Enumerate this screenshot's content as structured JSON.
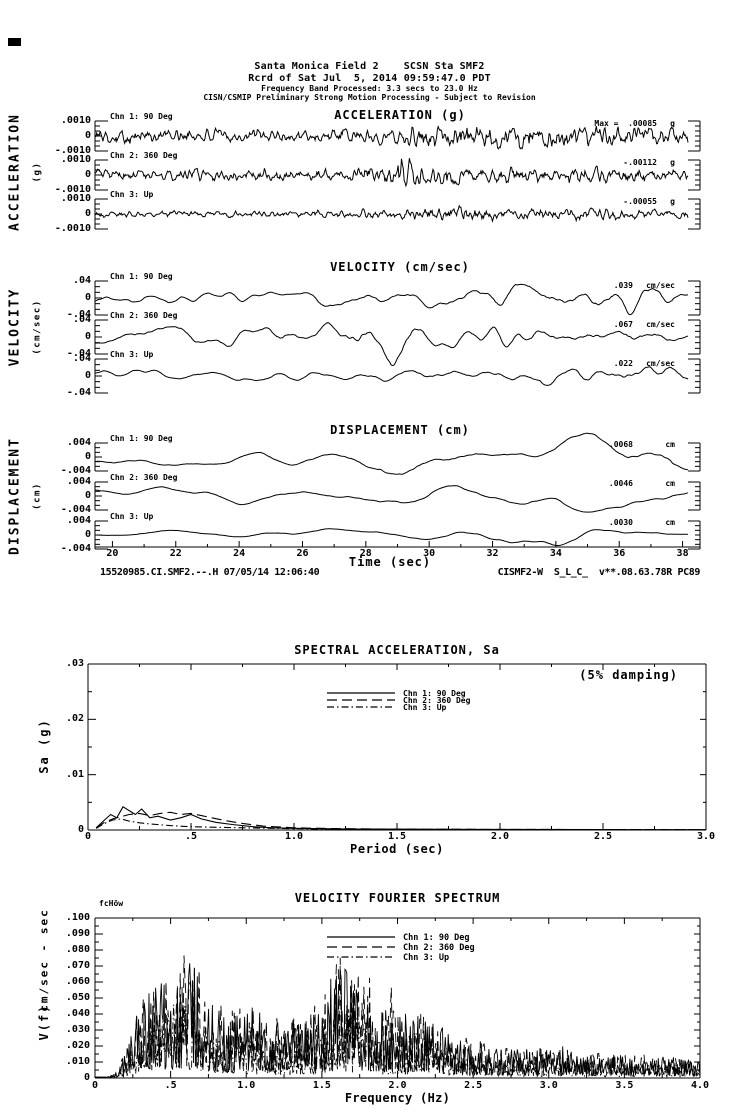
{
  "page": {
    "bg": "#ffffff",
    "fg": "#000000"
  },
  "header": {
    "line1": "Santa Monica Field 2    SCSN Sta SMF2",
    "line2": "Rcrd of Sat Jul  5, 2014 09:59:47.0 PDT",
    "line3": "Frequency Band Processed: 3.3 secs to 23.0 Hz",
    "line4": "CISN/CSMIP Preliminary Strong Motion Processing - Subject to Revision"
  },
  "legend": {
    "items": [
      {
        "label": "Chn 1: 90 Deg",
        "style": "solid"
      },
      {
        "label": "Chn 2: 360 Deg",
        "style": "long-dash"
      },
      {
        "label": "Chn 3: Up",
        "style": "dash-dot"
      }
    ]
  },
  "chart_data": [
    {
      "id": "waveform-time-series",
      "type": "line",
      "xlabel": "Time (sec)",
      "x_range": [
        19.45,
        38.55
      ],
      "x_ticks": [
        20,
        22,
        24,
        26,
        28,
        30,
        32,
        34,
        36,
        38
      ],
      "x_minor_step": 1,
      "footer_left": "15520985.CI.SMF2.--.H 07/05/14 12:06:40",
      "footer_right": "CISMF2-W  S_L_C_  v**.08.63.78R PC89",
      "groups": [
        {
          "title": "ACCELERATION (g)",
          "side_label": "ACCELERATION",
          "side_unit": "(g)",
          "scale": 0.001,
          "yticks": {
            "top": ".0010",
            "mid": "0",
            "bot": "-.0010"
          },
          "channels": [
            {
              "label": "Chn 1: 90 Deg",
              "max_label": "Max =  .00085",
              "max_value": 0.00085,
              "unit": "g",
              "gen": {
                "seed": 101,
                "env": [
                  [
                    0,
                    0.55
                  ],
                  [
                    0.3,
                    0.5
                  ],
                  [
                    0.45,
                    0.55
                  ],
                  [
                    0.55,
                    0.8
                  ],
                  [
                    0.68,
                    1
                  ],
                  [
                    0.85,
                    0.85
                  ],
                  [
                    1,
                    0.75
                  ]
                ]
              }
            },
            {
              "label": "Chn 2: 360 Deg",
              "max_label": "-.00112",
              "max_value": -0.00112,
              "unit": "g",
              "gen": {
                "seed": 102,
                "env": [
                  [
                    0,
                    0.35
                  ],
                  [
                    0.4,
                    0.4
                  ],
                  [
                    0.49,
                    0.55
                  ],
                  [
                    0.52,
                    1
                  ],
                  [
                    0.56,
                    0.7
                  ],
                  [
                    0.65,
                    0.45
                  ],
                  [
                    0.8,
                    0.5
                  ],
                  [
                    1,
                    0.4
                  ]
                ]
              }
            },
            {
              "label": "Chn 3: Up",
              "max_label": "-.00055",
              "max_value": -0.00055,
              "unit": "g",
              "gen": {
                "seed": 103,
                "env": [
                  [
                    0,
                    0.45
                  ],
                  [
                    0.4,
                    0.5
                  ],
                  [
                    0.5,
                    0.75
                  ],
                  [
                    0.6,
                    1
                  ],
                  [
                    0.75,
                    0.85
                  ],
                  [
                    1,
                    0.65
                  ]
                ]
              }
            }
          ]
        },
        {
          "title": "VELOCITY (cm/sec)",
          "side_label": "VELOCITY",
          "side_unit": "(cm/sec)",
          "scale": 0.04,
          "yticks": {
            "top": ".04",
            "mid": "0",
            "bot": "-.04"
          },
          "channels": [
            {
              "label": "Chn 1: 90 Deg",
              "max_label": ".039",
              "max_value": 0.039,
              "unit": "cm/sec",
              "gen": {
                "seed": 201,
                "env": [
                  [
                    0,
                    0.4
                  ],
                  [
                    0.35,
                    0.45
                  ],
                  [
                    0.5,
                    0.6
                  ],
                  [
                    0.65,
                    0.8
                  ],
                  [
                    0.8,
                    1
                  ],
                  [
                    0.92,
                    0.9
                  ],
                  [
                    1,
                    1
                  ]
                ]
              }
            },
            {
              "label": "Chn 2: 360 Deg",
              "max_label": ".067",
              "max_value": 0.067,
              "unit": "cm/sec",
              "gen": {
                "seed": 202,
                "env": [
                  [
                    0,
                    0.35
                  ],
                  [
                    0.4,
                    0.45
                  ],
                  [
                    0.5,
                    1
                  ],
                  [
                    0.58,
                    0.55
                  ],
                  [
                    0.7,
                    0.5
                  ],
                  [
                    0.85,
                    0.55
                  ],
                  [
                    1,
                    0.5
                  ]
                ]
              }
            },
            {
              "label": "Chn 3: Up",
              "max_label": ".022",
              "max_value": 0.022,
              "unit": "cm/sec",
              "gen": {
                "seed": 203,
                "env": [
                  [
                    0,
                    0.4
                  ],
                  [
                    0.45,
                    0.5
                  ],
                  [
                    0.6,
                    0.65
                  ],
                  [
                    0.75,
                    0.85
                  ],
                  [
                    0.9,
                    1
                  ],
                  [
                    1,
                    0.8
                  ]
                ]
              }
            }
          ]
        },
        {
          "title": "DISPLACEMENT (cm)",
          "side_label": "DISPLACEMENT",
          "side_unit": "(cm)",
          "scale": 0.004,
          "yticks": {
            "top": ".004",
            "mid": "0",
            "bot": "-.004"
          },
          "channels": [
            {
              "label": "Chn 1: 90 Deg",
              "max_label": ".0068",
              "max_value": 0.0068,
              "unit": "cm",
              "gen": {
                "seed": 301,
                "env": [
                  [
                    0,
                    0.45
                  ],
                  [
                    0.35,
                    0.5
                  ],
                  [
                    0.47,
                    0.75
                  ],
                  [
                    0.52,
                    1
                  ],
                  [
                    0.62,
                    0.75
                  ],
                  [
                    0.75,
                    0.8
                  ],
                  [
                    0.9,
                    0.85
                  ],
                  [
                    1,
                    0.95
                  ]
                ]
              }
            },
            {
              "label": "Chn 2: 360 Deg",
              "max_label": ".0046",
              "max_value": 0.0046,
              "unit": "cm",
              "gen": {
                "seed": 302,
                "env": [
                  [
                    0,
                    0.5
                  ],
                  [
                    0.35,
                    0.5
                  ],
                  [
                    0.48,
                    1
                  ],
                  [
                    0.6,
                    0.65
                  ],
                  [
                    0.75,
                    0.7
                  ],
                  [
                    0.9,
                    0.75
                  ],
                  [
                    1,
                    0.8
                  ]
                ]
              }
            },
            {
              "label": "Chn 3: Up",
              "max_label": ".0030",
              "max_value": 0.003,
              "unit": "cm",
              "gen": {
                "seed": 303,
                "env": [
                  [
                    0,
                    0.45
                  ],
                  [
                    0.4,
                    0.55
                  ],
                  [
                    0.6,
                    0.75
                  ],
                  [
                    0.72,
                    1
                  ],
                  [
                    0.85,
                    0.8
                  ],
                  [
                    1,
                    0.7
                  ]
                ]
              }
            }
          ]
        }
      ]
    },
    {
      "id": "spectral-acceleration",
      "type": "line",
      "title": "SPECTRAL ACCELERATION, Sa",
      "annotation": "(5% damping)",
      "ylabel": "Sa (g)",
      "xlabel": "Period (sec)",
      "ylim": [
        0,
        0.03
      ],
      "xlim": [
        0,
        3
      ],
      "y_ticks": [
        {
          "v": 0.03,
          "label": ".03"
        },
        {
          "v": 0.02,
          "label": ".02"
        },
        {
          "v": 0.01,
          "label": ".01"
        },
        {
          "v": 0,
          "label": "0"
        }
      ],
      "y_minor_step": 0.005,
      "x_ticks": [
        {
          "v": 0,
          "label": "0"
        },
        {
          "v": 0.5,
          "label": ".5"
        },
        {
          "v": 1,
          "label": "1.0"
        },
        {
          "v": 1.5,
          "label": "1.5"
        },
        {
          "v": 2,
          "label": "2.0"
        },
        {
          "v": 2.5,
          "label": "2.5"
        },
        {
          "v": 3,
          "label": "3.0"
        }
      ],
      "x_minor_step": 0.25,
      "series": [
        {
          "name": "Chn 1: 90 Deg",
          "points": [
            [
              0.04,
              0.0004
            ],
            [
              0.08,
              0.0018
            ],
            [
              0.11,
              0.0028
            ],
            [
              0.14,
              0.0022
            ],
            [
              0.17,
              0.0042
            ],
            [
              0.2,
              0.0035
            ],
            [
              0.23,
              0.0028
            ],
            [
              0.26,
              0.0038
            ],
            [
              0.3,
              0.0022
            ],
            [
              0.34,
              0.0025
            ],
            [
              0.4,
              0.0018
            ],
            [
              0.45,
              0.0022
            ],
            [
              0.5,
              0.0028
            ],
            [
              0.55,
              0.002
            ],
            [
              0.62,
              0.0014
            ],
            [
              0.7,
              0.001
            ],
            [
              0.8,
              0.0006
            ],
            [
              0.9,
              0.0004
            ],
            [
              1.0,
              0.0003
            ],
            [
              1.2,
              0.0002
            ],
            [
              1.5,
              0.00015
            ],
            [
              2.0,
              0.0001
            ],
            [
              2.5,
              8e-05
            ],
            [
              3.0,
              6e-05
            ]
          ]
        },
        {
          "name": "Chn 2: 360 Deg",
          "points": [
            [
              0.04,
              0.0003
            ],
            [
              0.08,
              0.0014
            ],
            [
              0.12,
              0.002
            ],
            [
              0.16,
              0.0024
            ],
            [
              0.2,
              0.0028
            ],
            [
              0.25,
              0.003
            ],
            [
              0.3,
              0.0026
            ],
            [
              0.35,
              0.003
            ],
            [
              0.4,
              0.0032
            ],
            [
              0.45,
              0.0028
            ],
            [
              0.5,
              0.003
            ],
            [
              0.55,
              0.0026
            ],
            [
              0.6,
              0.0022
            ],
            [
              0.68,
              0.0016
            ],
            [
              0.75,
              0.0012
            ],
            [
              0.85,
              0.0007
            ],
            [
              1.0,
              0.0004
            ],
            [
              1.2,
              0.00025
            ],
            [
              1.5,
              0.00015
            ],
            [
              2.0,
              0.0001
            ],
            [
              3.0,
              6e-05
            ]
          ]
        },
        {
          "name": "Chn 3: Up",
          "points": [
            [
              0.04,
              0.0003
            ],
            [
              0.08,
              0.0012
            ],
            [
              0.12,
              0.0018
            ],
            [
              0.16,
              0.002
            ],
            [
              0.2,
              0.0016
            ],
            [
              0.25,
              0.0013
            ],
            [
              0.3,
              0.0011
            ],
            [
              0.4,
              0.0008
            ],
            [
              0.5,
              0.0006
            ],
            [
              0.6,
              0.0005
            ],
            [
              0.75,
              0.0004
            ],
            [
              0.9,
              0.0003
            ],
            [
              1.1,
              0.0002
            ],
            [
              1.5,
              0.00012
            ],
            [
              2.0,
              8e-05
            ],
            [
              3.0,
              5e-05
            ]
          ]
        }
      ]
    },
    {
      "id": "velocity-fourier-spectrum",
      "type": "line",
      "title": "VELOCITY FOURIER SPECTRUM",
      "corner_label": "fcHöw",
      "ylabel_main": "V(f)",
      "ylabel_unit": "cm/sec - sec",
      "xlabel": "Frequency (Hz)",
      "ylim": [
        0,
        0.1
      ],
      "xlim": [
        0,
        4
      ],
      "y_ticks": [
        {
          "v": 0.1,
          "label": ".100"
        },
        {
          "v": 0.09,
          "label": ".090"
        },
        {
          "v": 0.08,
          "label": ".080"
        },
        {
          "v": 0.07,
          "label": ".070"
        },
        {
          "v": 0.06,
          "label": ".060"
        },
        {
          "v": 0.05,
          "label": ".050"
        },
        {
          "v": 0.04,
          "label": ".040"
        },
        {
          "v": 0.03,
          "label": ".030"
        },
        {
          "v": 0.02,
          "label": ".020"
        },
        {
          "v": 0.01,
          "label": ".010"
        },
        {
          "v": 0,
          "label": "0"
        }
      ],
      "y_minor_step": 0.005,
      "x_ticks": [
        {
          "v": 0,
          "label": "0"
        },
        {
          "v": 0.5,
          "label": ".5"
        },
        {
          "v": 1,
          "label": "1.0"
        },
        {
          "v": 1.5,
          "label": "1.5"
        },
        {
          "v": 2,
          "label": "2.0"
        },
        {
          "v": 2.5,
          "label": "2.5"
        },
        {
          "v": 3,
          "label": "3.0"
        },
        {
          "v": 3.5,
          "label": "3.5"
        },
        {
          "v": 4,
          "label": "4.0"
        }
      ],
      "x_minor_step": 0.25,
      "gen": {
        "n": 640,
        "channels": [
          {
            "seed": 41,
            "peak": 0.075
          },
          {
            "seed": 42,
            "peak": 0.08
          },
          {
            "seed": 43,
            "peak": 0.05
          }
        ],
        "envelope": [
          [
            0,
            0
          ],
          [
            0.08,
            0.01
          ],
          [
            0.15,
            0.06
          ],
          [
            0.22,
            0.3
          ],
          [
            0.3,
            0.6
          ],
          [
            0.4,
            0.8
          ],
          [
            0.5,
            0.92
          ],
          [
            0.62,
            1.0
          ],
          [
            0.72,
            0.85
          ],
          [
            0.82,
            0.6
          ],
          [
            0.95,
            0.55
          ],
          [
            1.05,
            0.62
          ],
          [
            1.15,
            0.5
          ],
          [
            1.25,
            0.45
          ],
          [
            1.35,
            0.52
          ],
          [
            1.5,
            0.72
          ],
          [
            1.62,
            0.95
          ],
          [
            1.72,
            0.85
          ],
          [
            1.85,
            0.6
          ],
          [
            2.0,
            0.52
          ],
          [
            2.1,
            0.58
          ],
          [
            2.2,
            0.5
          ],
          [
            2.35,
            0.38
          ],
          [
            2.5,
            0.3
          ],
          [
            2.7,
            0.26
          ],
          [
            3.0,
            0.24
          ],
          [
            3.3,
            0.2
          ],
          [
            3.6,
            0.19
          ],
          [
            4.0,
            0.16
          ]
        ]
      }
    }
  ]
}
